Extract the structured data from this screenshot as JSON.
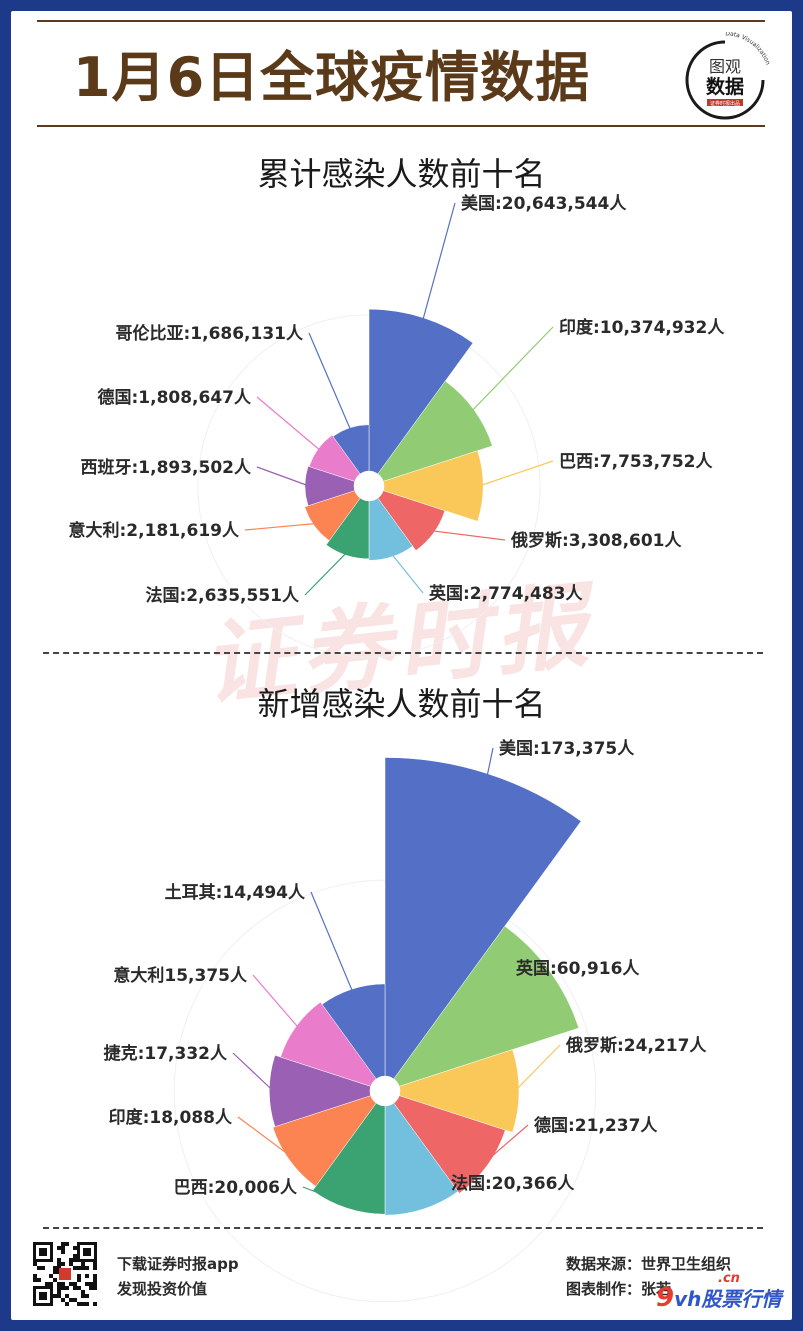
{
  "header": {
    "title": "1月6日全球疫情数据",
    "logo_line1": "图观",
    "logo_line2": "数据",
    "logo_ring_text": "Data Visualization",
    "logo_sub": "证券时报出品"
  },
  "watermark": "证券时报",
  "colors": [
    "#5470c6",
    "#91cc75",
    "#fac858",
    "#ee6666",
    "#73c0de",
    "#3ba272",
    "#fc8452",
    "#9a60b4",
    "#ea7ccc",
    "#5470c6"
  ],
  "chart_data": [
    {
      "type": "pie",
      "subtype": "rose",
      "title": "累计感染人数前十名",
      "unit": "人",
      "categories": [
        "美国",
        "印度",
        "巴西",
        "俄罗斯",
        "英国",
        "法国",
        "意大利",
        "西班牙",
        "德国",
        "哥伦比亚"
      ],
      "values": [
        20643544,
        10374932,
        7753752,
        3308601,
        2774483,
        2635551,
        2181619,
        1893502,
        1808647,
        1686131
      ],
      "labels": [
        "美国:20,643,544人",
        "印度:10,374,932人",
        "巴西:7,753,752人",
        "俄罗斯:3,308,601人",
        "英国:2,774,483人",
        "法国:2,635,551人",
        "意大利:2,181,619人",
        "西班牙:1,893,502人",
        "德国:1,808,647人",
        "哥伦比亚:1,686,131人"
      ]
    },
    {
      "type": "pie",
      "subtype": "rose",
      "title": "新增感染人数前十名",
      "unit": "人",
      "categories": [
        "美国",
        "英国",
        "俄罗斯",
        "德国",
        "法国",
        "巴西",
        "印度",
        "捷克",
        "意大利",
        "土耳其"
      ],
      "values": [
        173375,
        60916,
        24217,
        21237,
        20366,
        20006,
        18088,
        17332,
        15375,
        14494
      ],
      "labels": [
        "美国:173,375人",
        "英国:60,916人",
        "俄罗斯:24,217人",
        "德国:21,237人",
        "法国:20,366人",
        "巴西:20,006人",
        "印度:18,088人",
        "捷克:17,332人",
        "意大利15,375人",
        "土耳其:14,494人"
      ]
    }
  ],
  "footer": {
    "download": "下载证券时报app",
    "slogan": "发现投资价值",
    "source": "数据来源：世界卫生组织",
    "maker": "图表制作：张若",
    "brand_num": "9",
    "brand_text": "vh股票行情",
    "brand_cn": ".cn"
  }
}
